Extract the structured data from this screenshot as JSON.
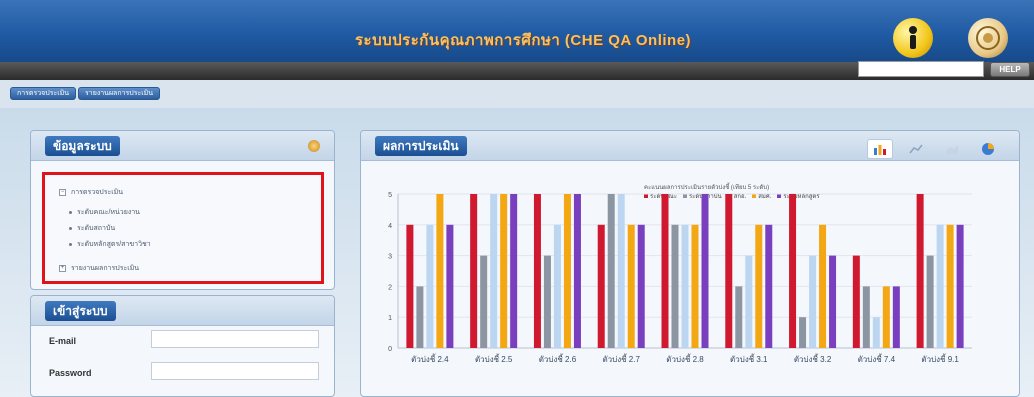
{
  "header": {
    "title": "ระบบประกันคุณภาพการศึกษา (CHE QA Online)",
    "icons": [
      "info-person-icon",
      "emblem-icon"
    ]
  },
  "toolbar": {
    "search_value": "",
    "help_label": "HELP"
  },
  "breadcrumb": {
    "items": [
      "การตรวจประเมิน",
      "รายงานผลการประเมิน"
    ]
  },
  "info_panel": {
    "title": "ข้อมูลระบบ",
    "tree": [
      {
        "label": "การตรวจประเมิน",
        "level": 0,
        "expanded": true
      },
      {
        "label": "ระดับคณะ/หน่วยงาน",
        "level": 1
      },
      {
        "label": "ระดับสถาบัน",
        "level": 1
      },
      {
        "label": "ระดับหลักสูตร/สาขาวิชา",
        "level": 1
      },
      {
        "label": "รายงานผลการประเมิน",
        "level": 0,
        "expanded": false
      }
    ]
  },
  "login_panel": {
    "title": "เข้าสู่ระบบ",
    "email_label": "E-mail",
    "password_label": "Password",
    "email_value": "",
    "password_value": ""
  },
  "chart_panel": {
    "title": "ผลการประเมิน",
    "view_icons": [
      "bar-chart-icon",
      "line-chart-icon",
      "area-chart-icon",
      "pie-chart-icon"
    ],
    "legend_title": "คะแนนผลการประเมินรายตัวบ่งชี้ (เทียบ 5 ระดับ)"
  },
  "chart_data": {
    "type": "bar",
    "categories": [
      "ตัวบ่งชี้ 2.4",
      "ตัวบ่งชี้ 2.5",
      "ตัวบ่งชี้ 2.6",
      "ตัวบ่งชี้ 2.7",
      "ตัวบ่งชี้ 2.8",
      "ตัวบ่งชี้ 3.1",
      "ตัวบ่งชี้ 3.2",
      "ตัวบ่งชี้ 7.4",
      "ตัวบ่งชี้ 9.1"
    ],
    "ylim": [
      0,
      5
    ],
    "yticks": [
      "0",
      "1",
      "2",
      "3",
      "4",
      "5"
    ],
    "series": [
      {
        "name": "ระดับคณะ",
        "color": "#d0182f",
        "values": [
          4,
          5,
          5,
          4,
          5,
          5,
          5,
          3,
          5
        ]
      },
      {
        "name": "ระดับสถาบัน",
        "color": "#8c96a3",
        "values": [
          2,
          3,
          3,
          5,
          4,
          2,
          1,
          2,
          3
        ]
      },
      {
        "name": "สกอ.",
        "color": "#bcd6f2",
        "values": [
          4,
          5,
          4,
          5,
          4,
          3,
          3,
          1,
          4
        ]
      },
      {
        "name": "สมศ.",
        "color": "#f3a713",
        "values": [
          5,
          5,
          5,
          4,
          4,
          4,
          4,
          2,
          4
        ]
      },
      {
        "name": "ระดับหลักสูตร",
        "color": "#7a3fbe",
        "values": [
          4,
          5,
          5,
          4,
          5,
          4,
          3,
          2,
          4
        ]
      }
    ]
  }
}
